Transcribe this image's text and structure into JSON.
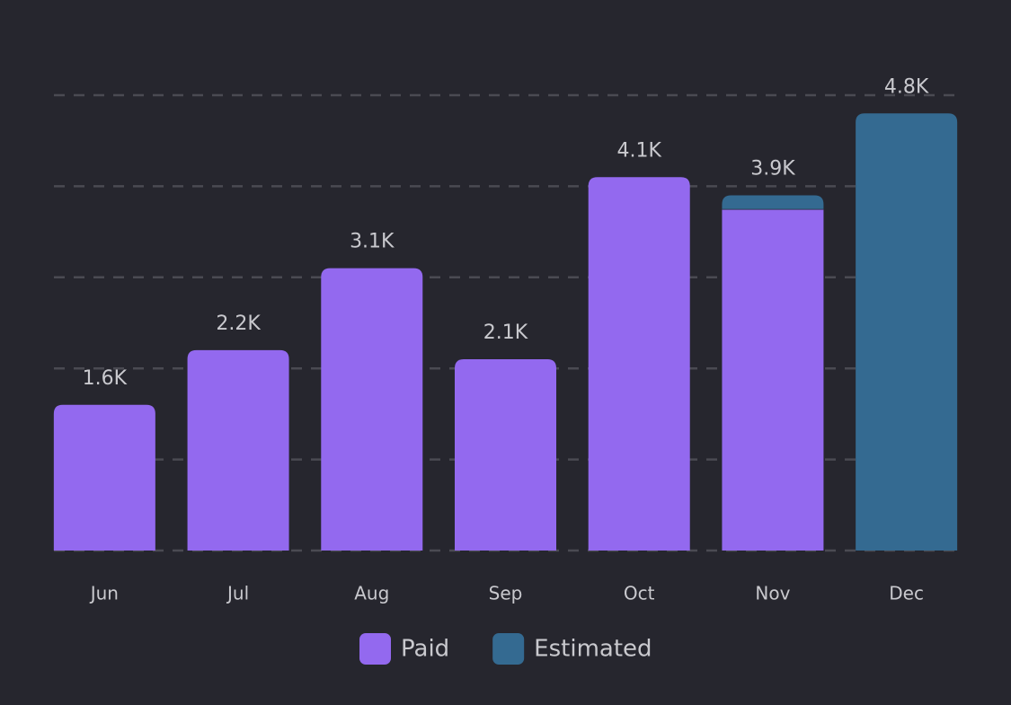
{
  "chart_data": {
    "type": "stacked_bar",
    "categories": [
      "Jun",
      "Jul",
      "Aug",
      "Sep",
      "Oct",
      "Nov",
      "Dec"
    ],
    "series": [
      {
        "name": "Paid",
        "color": "#9369ef",
        "values": [
          1600,
          2200,
          3100,
          2100,
          4100,
          3750,
          null
        ]
      },
      {
        "name": "Estimated",
        "color": "#346a91",
        "values": [
          null,
          null,
          null,
          null,
          null,
          150,
          4800
        ]
      }
    ],
    "total_labels": [
      "1.6K",
      "2.2K",
      "3.1K",
      "2.1K",
      "4.1K",
      "3.9K",
      "4.8K"
    ],
    "ylim": [
      0,
      5000
    ],
    "yticks": [
      0,
      1000,
      2000,
      3000,
      4000,
      5000
    ],
    "grid": true,
    "legend": "bottom"
  }
}
